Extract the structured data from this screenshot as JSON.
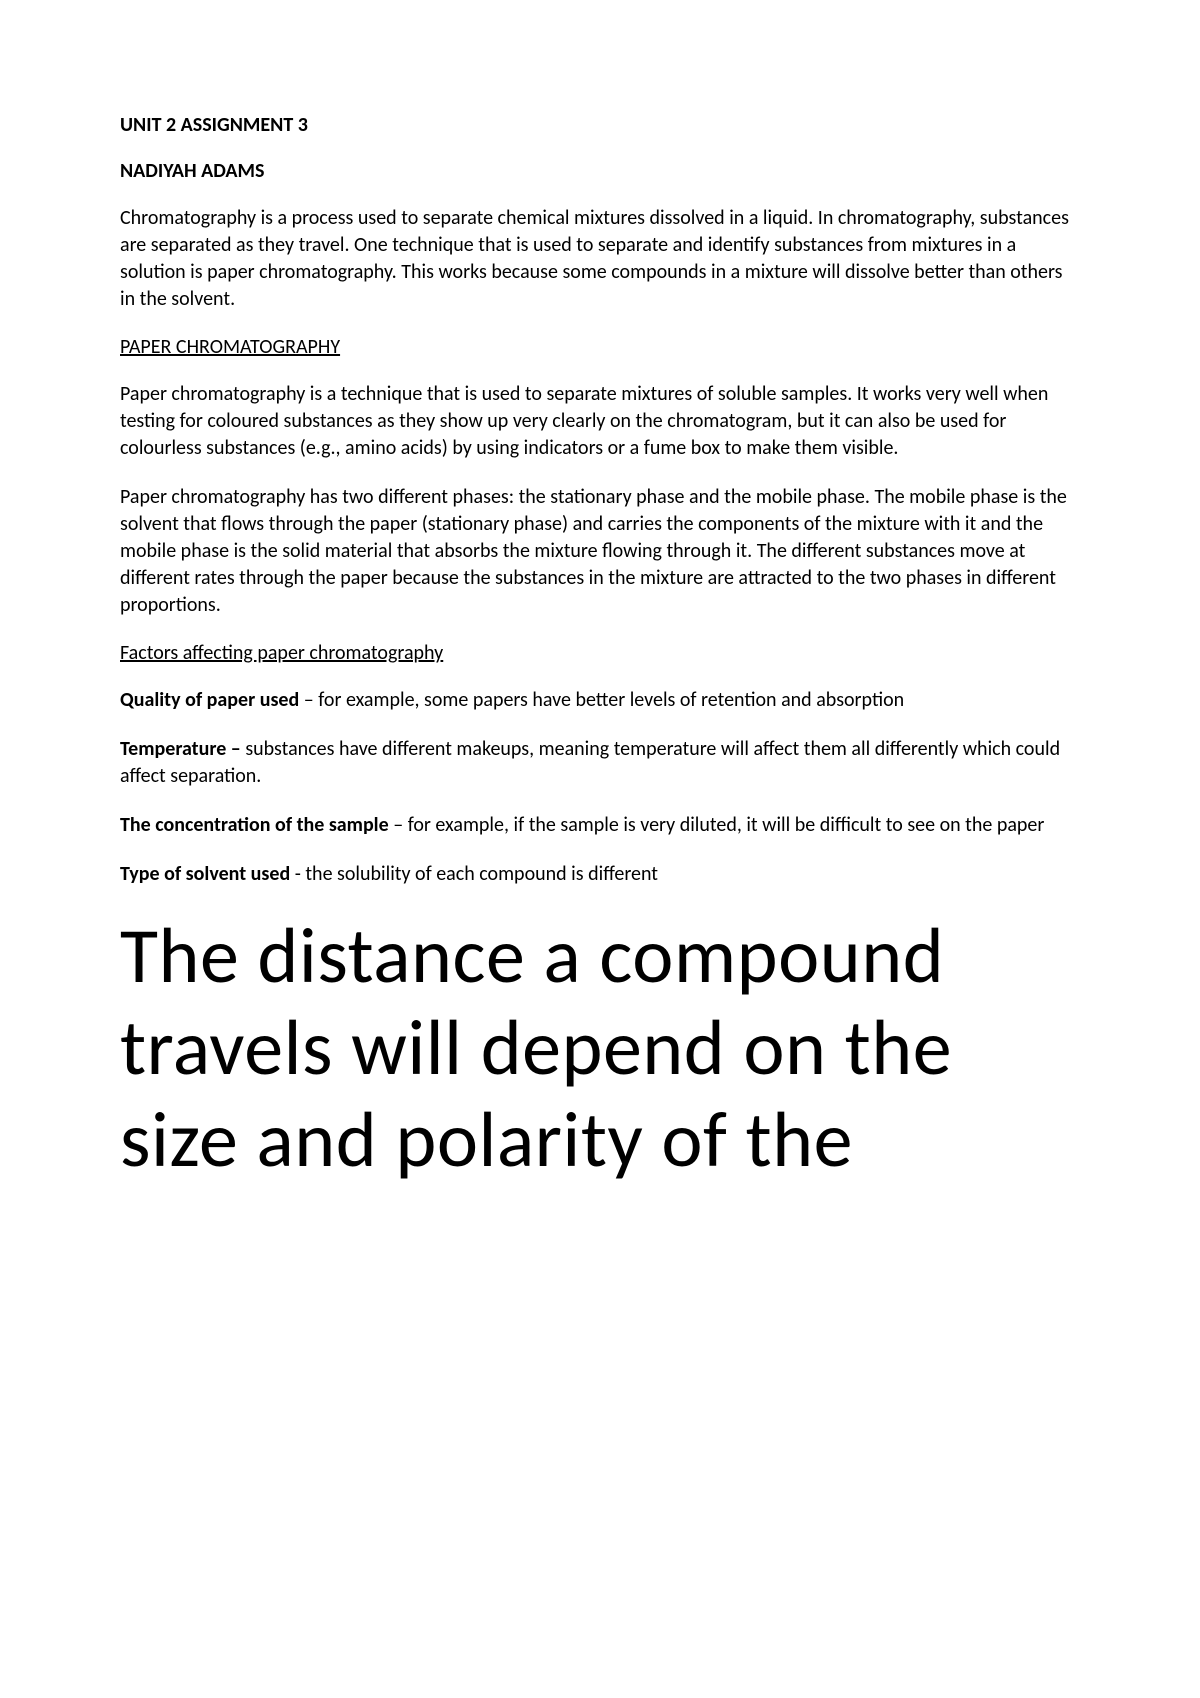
{
  "doc": {
    "title": "UNIT 2 ASSIGNMENT 3",
    "author": "NADIYAH ADAMS",
    "intro": "Chromatography is a process used to separate chemical mixtures dissolved in a liquid. In chromatography, substances are separated as they travel. One technique that is used to separate and identify substances from mixtures in a solution is paper chromatography. This works because some compounds in a mixture will dissolve better than others in the solvent.",
    "section1_heading": "PAPER CHROMATOGRAPHY",
    "section1_p1": "Paper chromatography is a technique that is used to separate mixtures of soluble samples. It works very well when testing for coloured substances as they show up very clearly on the chromatogram, but it can also be used for colourless substances (e.g., amino acids) by using indicators or a fume box to make them visible.",
    "section1_p2": "Paper chromatography has two different phases: the stationary phase and the mobile phase. The mobile phase is the solvent that flows through the paper (stationary phase) and carries the components of the mixture with it and the mobile phase is the solid material that absorbs the mixture flowing through it. The different substances move at different rates through the paper because the substances in the mixture are attracted to the two phases in different proportions.",
    "factors_heading": "Factors affecting paper chromatography",
    "factors": [
      {
        "label": "Quality of paper used",
        "sep": " – ",
        "text": "for example, some papers have better levels of retention and absorption"
      },
      {
        "label": "Temperature –",
        "sep": " ",
        "text": "substances have different makeups, meaning temperature will affect them all differently which could affect separation."
      },
      {
        "label": "The concentration of the sample",
        "sep": " – ",
        "text": "for example, if the sample is very diluted, it will be difficult to see on the paper"
      },
      {
        "label": "Type of solvent used",
        "sep": " - ",
        "text": "the solubility of each compound is different"
      }
    ],
    "large_text": "The distance a compound travels will depend on the size and polarity of the"
  },
  "style": {
    "background_color": "#ffffff",
    "text_color": "#000000",
    "body_fontsize": 20,
    "large_fontsize": 78,
    "font_family": "Calibri"
  }
}
